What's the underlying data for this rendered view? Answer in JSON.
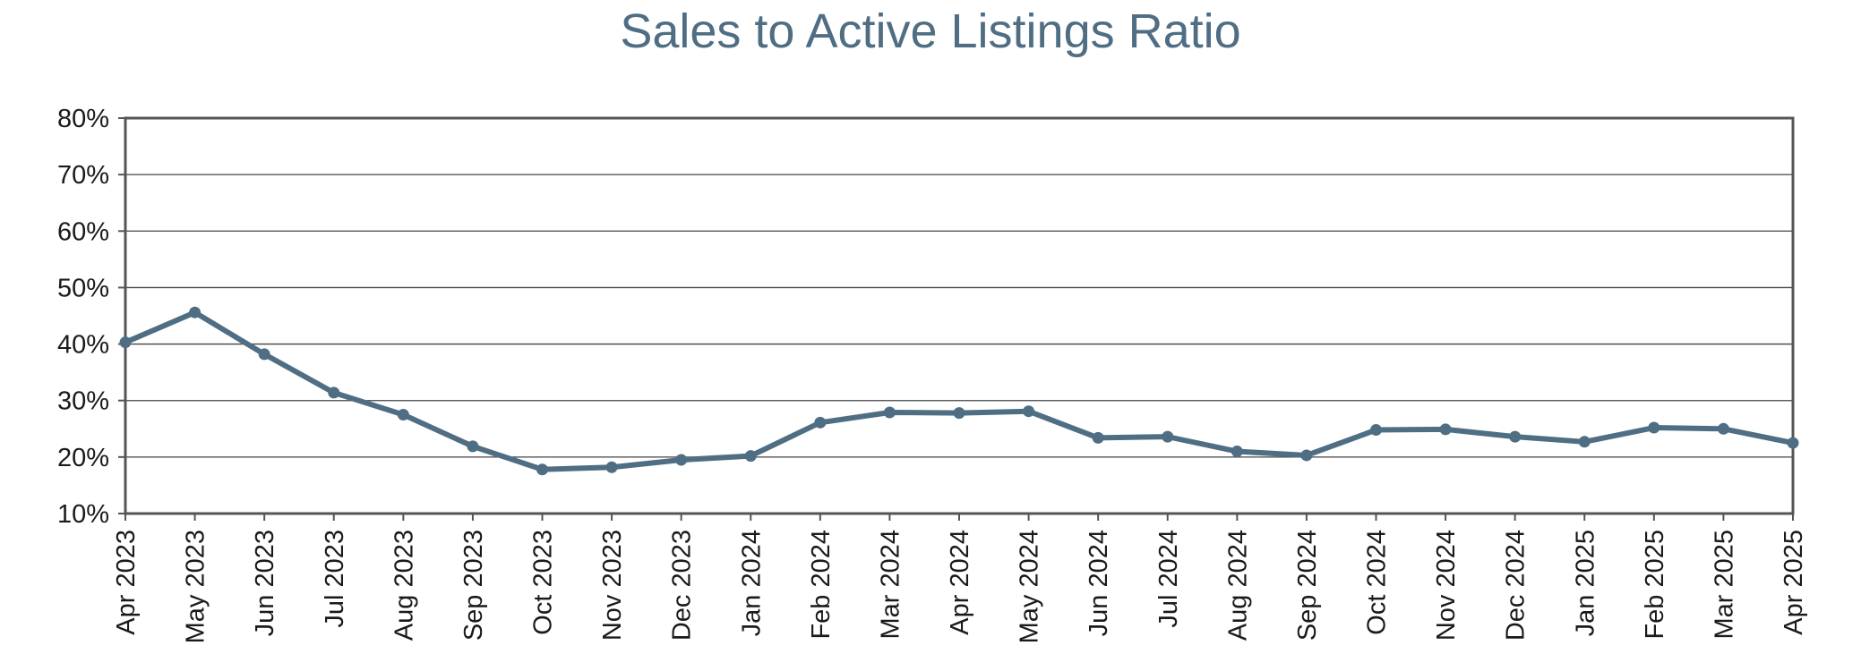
{
  "chart_data": {
    "type": "line",
    "title": "Sales to Active Listings Ratio",
    "xlabel": "",
    "ylabel": "",
    "ylim": [
      10,
      80
    ],
    "y_ticks": [
      "10%",
      "20%",
      "30%",
      "40%",
      "50%",
      "60%",
      "70%",
      "80%"
    ],
    "grid": true,
    "categories": [
      "Apr 2023",
      "May 2023",
      "Jun 2023",
      "Jul 2023",
      "Aug 2023",
      "Sep 2023",
      "Oct 2023",
      "Nov 2023",
      "Dec 2023",
      "Jan 2024",
      "Feb 2024",
      "Mar 2024",
      "Apr 2024",
      "May 2024",
      "Jun 2024",
      "Jul 2024",
      "Aug 2024",
      "Sep 2024",
      "Oct 2024",
      "Nov 2024",
      "Dec 2024",
      "Jan 2025",
      "Feb 2025",
      "Mar 2025",
      "Apr 2025"
    ],
    "series": [
      {
        "values": [
          40.3,
          45.6,
          38.2,
          31.4,
          27.5,
          21.9,
          17.8,
          18.2,
          19.5,
          20.2,
          26.1,
          27.9,
          27.8,
          28.1,
          23.4,
          23.6,
          21.0,
          20.3,
          24.8,
          24.9,
          23.6,
          22.7,
          25.2,
          25.0,
          22.5
        ],
        "color": "#4f6e84"
      }
    ],
    "colors": {
      "line": "#4f6e84",
      "title": "#4f6e84",
      "grid": "#444444",
      "frame": "#555555"
    }
  }
}
